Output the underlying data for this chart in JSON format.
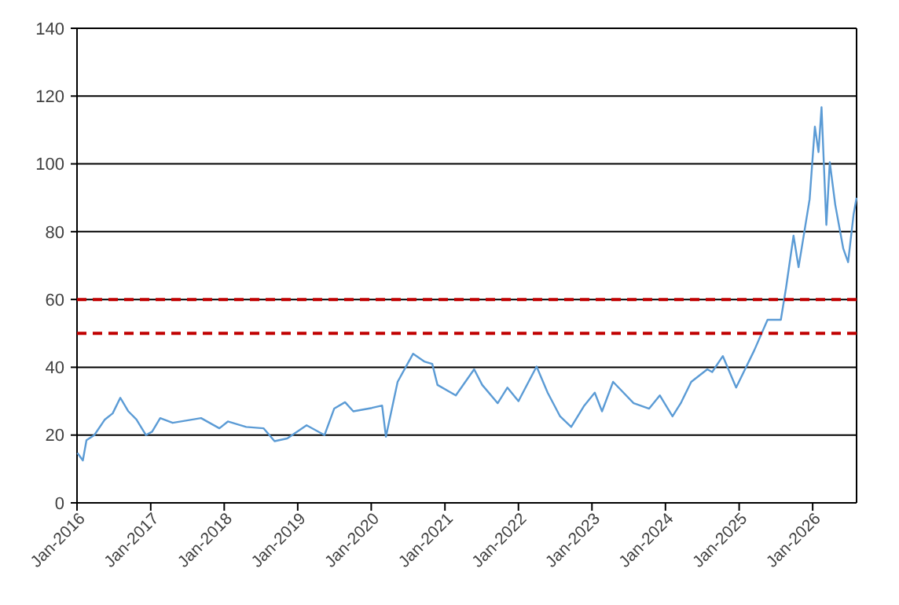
{
  "chart_data": {
    "type": "line",
    "xlim": [
      "2016-01-01",
      "2026-08-07"
    ],
    "ylim": [
      0,
      140
    ],
    "yticks": [
      0,
      20,
      40,
      60,
      80,
      100,
      120,
      140
    ],
    "xticks": [
      {
        "value": "2016-01-01",
        "label": "Jan-2016"
      },
      {
        "value": "2017-01-01",
        "label": "Jan-2017"
      },
      {
        "value": "2018-01-01",
        "label": "Jan-2018"
      },
      {
        "value": "2019-01-01",
        "label": "Jan-2019"
      },
      {
        "value": "2020-01-01",
        "label": "Jan-2020"
      },
      {
        "value": "2021-01-01",
        "label": "Jan-2021"
      },
      {
        "value": "2022-01-01",
        "label": "Jan-2022"
      },
      {
        "value": "2023-01-01",
        "label": "Jan-2023"
      },
      {
        "value": "2024-01-01",
        "label": "Jan-2024"
      },
      {
        "value": "2025-01-01",
        "label": "Jan-2025"
      },
      {
        "value": "2026-01-01",
        "label": "Jan-2026"
      }
    ],
    "grid": "y",
    "marker": "none",
    "line_style": "solid",
    "series": [
      {
        "color": "#5b9bd5",
        "x": [
          "2016-01-03",
          "2016-01-30",
          "2016-02-17",
          "2016-03-27",
          "2016-05-17",
          "2016-06-26",
          "2016-08-03",
          "2016-09-12",
          "2016-10-22",
          "2016-12-08",
          "2017-01-08",
          "2017-02-17",
          "2017-04-20",
          "2017-09-08",
          "2017-12-08",
          "2018-01-19",
          "2018-04-20",
          "2018-07-15",
          "2018-09-08",
          "2018-11-10",
          "2019-02-14",
          "2019-05-14",
          "2019-07-01",
          "2019-08-24",
          "2019-10-04",
          "2020-01-04",
          "2020-02-24",
          "2020-03-14",
          "2020-05-11",
          "2020-07-27",
          "2020-09-20",
          "2020-10-30",
          "2020-11-25",
          "2021-02-24",
          "2021-05-26",
          "2021-07-05",
          "2021-09-20",
          "2021-11-07",
          "2022-01-01",
          "2022-04-01",
          "2022-05-26",
          "2022-07-27",
          "2022-09-20",
          "2022-11-24",
          "2023-01-15",
          "2023-02-20",
          "2023-04-16",
          "2023-07-27",
          "2023-10-12",
          "2023-12-04",
          "2024-02-05",
          "2024-03-17",
          "2024-05-08",
          "2024-07-27",
          "2024-08-20",
          "2024-10-12",
          "2024-12-17",
          "2025-03-17",
          "2025-05-22",
          "2025-07-27",
          "2025-08-22",
          "2025-09-28",
          "2025-10-23",
          "2025-12-17",
          "2026-01-12",
          "2026-01-30",
          "2026-02-14",
          "2026-03-10",
          "2026-03-27",
          "2026-04-23",
          "2026-06-02",
          "2026-06-26",
          "2026-07-23",
          "2026-08-07"
        ],
        "values": [
          14.7,
          12.5,
          18.5,
          20,
          24.5,
          26.4,
          31,
          27,
          24.6,
          20,
          21,
          25,
          23.6,
          25,
          22,
          24,
          22.4,
          22,
          18.2,
          19,
          22.9,
          20,
          27.8,
          29.7,
          27,
          28,
          28.7,
          19.5,
          35.7,
          44,
          41.7,
          41,
          34.8,
          31.7,
          39.4,
          34.8,
          29.4,
          34,
          30,
          40.2,
          32.5,
          25.5,
          22.4,
          28.7,
          32.5,
          27,
          35.7,
          29.4,
          27.8,
          31.7,
          25.5,
          29.4,
          35.7,
          39.4,
          38.6,
          43.3,
          34,
          45,
          54,
          54,
          63.5,
          78.8,
          69.5,
          89.6,
          111,
          103.5,
          116.7,
          82,
          100.5,
          88,
          75,
          71,
          85,
          90
        ]
      }
    ],
    "ref_lines": [
      {
        "axis": "y",
        "value": 60,
        "color": "#c00000",
        "line_style": "dashed"
      },
      {
        "axis": "y",
        "value": 50,
        "color": "#c00000",
        "line_style": "dashed"
      }
    ]
  }
}
